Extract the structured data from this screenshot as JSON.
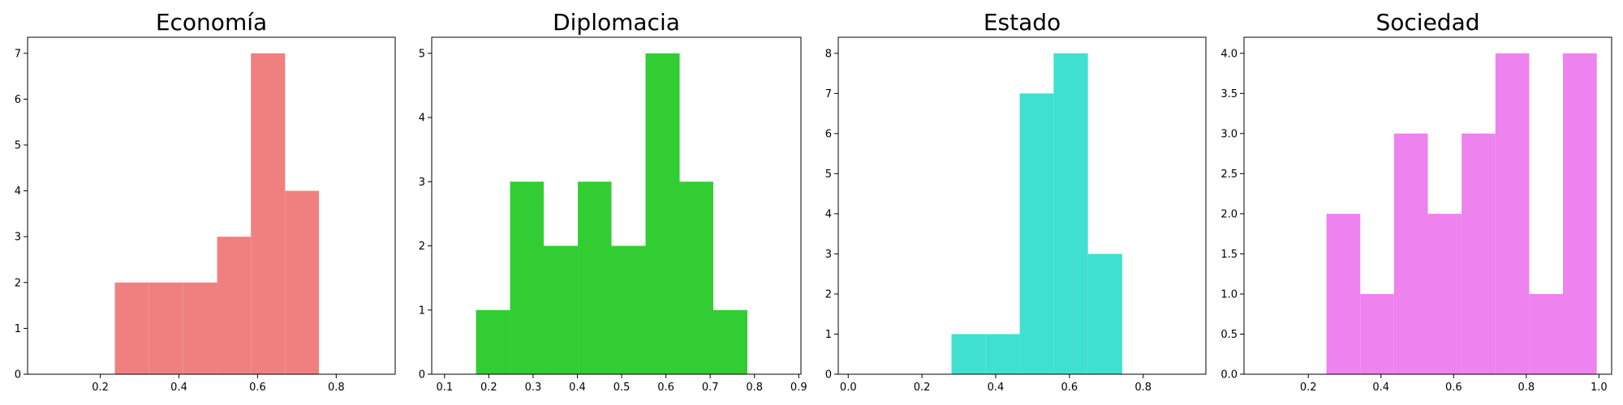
{
  "chart_data": [
    {
      "type": "bar",
      "subtype": "histogram",
      "title": "Economía",
      "color": "#f08080",
      "xlim": [
        0.015,
        0.95
      ],
      "ylim": [
        0,
        7.35
      ],
      "xticks": [
        0.2,
        0.4,
        0.6,
        0.8
      ],
      "xtick_labels": [
        "0.2",
        "0.4",
        "0.6",
        "0.8"
      ],
      "yticks": [
        0,
        1,
        2,
        3,
        4,
        5,
        6,
        7
      ],
      "ytick_labels": [
        "0",
        "1",
        "2",
        "3",
        "4",
        "5",
        "6",
        "7"
      ],
      "bin_edges": [
        0.237,
        0.324,
        0.41,
        0.497,
        0.583,
        0.67,
        0.756
      ],
      "counts": [
        2,
        2,
        2,
        3,
        7,
        4
      ],
      "grid": false,
      "legend": "none"
    },
    {
      "type": "bar",
      "subtype": "histogram",
      "title": "Diplomacia",
      "color": "#32cd32",
      "xlim": [
        0.071,
        0.905
      ],
      "ylim": [
        0,
        5.25
      ],
      "xticks": [
        0.1,
        0.2,
        0.3,
        0.4,
        0.5,
        0.6,
        0.7,
        0.8,
        0.9
      ],
      "xtick_labels": [
        "0.1",
        "0.2",
        "0.3",
        "0.4",
        "0.5",
        "0.6",
        "0.7",
        "0.8",
        "0.9"
      ],
      "yticks": [
        0,
        1,
        2,
        3,
        4,
        5
      ],
      "ytick_labels": [
        "0",
        "1",
        "2",
        "3",
        "4",
        "5"
      ],
      "bin_edges": [
        0.171,
        0.248,
        0.324,
        0.401,
        0.477,
        0.554,
        0.631,
        0.707,
        0.784
      ],
      "counts": [
        1,
        3,
        2,
        3,
        2,
        5,
        3,
        1
      ],
      "grid": false,
      "legend": "none"
    },
    {
      "type": "bar",
      "subtype": "histogram",
      "title": "Estado",
      "color": "#40e0d0",
      "xlim": [
        -0.027,
        0.97
      ],
      "ylim": [
        0,
        8.4
      ],
      "xticks": [
        0.0,
        0.2,
        0.4,
        0.6,
        0.8
      ],
      "xtick_labels": [
        "0.0",
        "0.2",
        "0.4",
        "0.6",
        "0.8"
      ],
      "yticks": [
        0,
        1,
        2,
        3,
        4,
        5,
        6,
        7,
        8
      ],
      "ytick_labels": [
        "0",
        "1",
        "2",
        "3",
        "4",
        "5",
        "6",
        "7",
        "8"
      ],
      "bin_edges": [
        0.28,
        0.372,
        0.465,
        0.557,
        0.65,
        0.743
      ],
      "counts": [
        1,
        1,
        7,
        8,
        3
      ],
      "grid": false,
      "legend": "none"
    },
    {
      "type": "bar",
      "subtype": "histogram",
      "title": "Sociedad",
      "color": "#ee82ee",
      "xlim": [
        0.023,
        1.035
      ],
      "ylim": [
        0,
        4.2
      ],
      "xticks": [
        0.2,
        0.4,
        0.6,
        0.8,
        1.0
      ],
      "xtick_labels": [
        "0.2",
        "0.4",
        "0.6",
        "0.8",
        "1.0"
      ],
      "yticks": [
        0,
        0.5,
        1.0,
        1.5,
        2.0,
        2.5,
        3.0,
        3.5,
        4.0
      ],
      "ytick_labels": [
        "0.0",
        "0.5",
        "1.0",
        "1.5",
        "2.0",
        "2.5",
        "3.0",
        "3.5",
        "4.0"
      ],
      "bin_edges": [
        0.25,
        0.343,
        0.436,
        0.529,
        0.622,
        0.715,
        0.808,
        0.901,
        0.994
      ],
      "counts": [
        2,
        1,
        3,
        2,
        3,
        4,
        1,
        4
      ],
      "grid": false,
      "legend": "none"
    }
  ]
}
